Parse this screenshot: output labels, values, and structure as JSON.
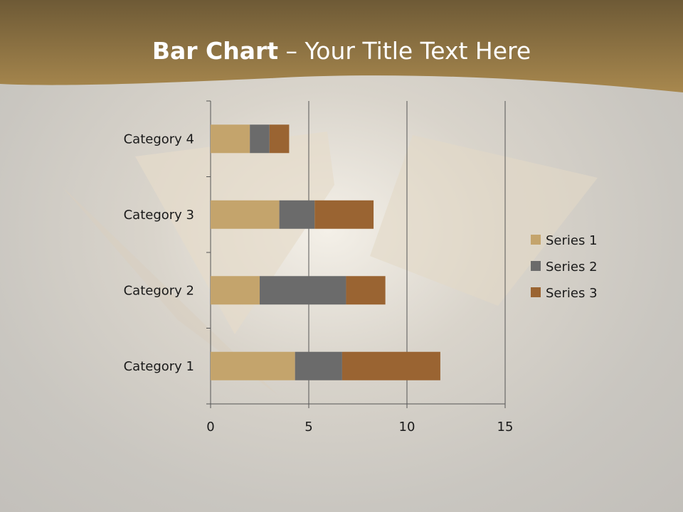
{
  "title": {
    "bold": "Bar Chart",
    "rest": " – Your Title Text Here"
  },
  "colors": {
    "header": "#a07c44",
    "series": [
      "#c4a46c",
      "#6b6b6b",
      "#9a6432"
    ]
  },
  "chart_data": {
    "type": "bar",
    "orientation": "horizontal",
    "stacked": true,
    "categories": [
      "Category 1",
      "Category 2",
      "Category 3",
      "Category 4"
    ],
    "series": [
      {
        "name": "Series 1",
        "values": [
          4.3,
          2.5,
          3.5,
          2
        ]
      },
      {
        "name": "Series 2",
        "values": [
          2.4,
          4.4,
          1.8,
          1
        ]
      },
      {
        "name": "Series 3",
        "values": [
          5,
          2,
          3,
          1
        ]
      }
    ],
    "xlim": [
      0,
      15
    ],
    "xticks": [
      0,
      5,
      10,
      15
    ],
    "grid": true,
    "legend": "right"
  }
}
